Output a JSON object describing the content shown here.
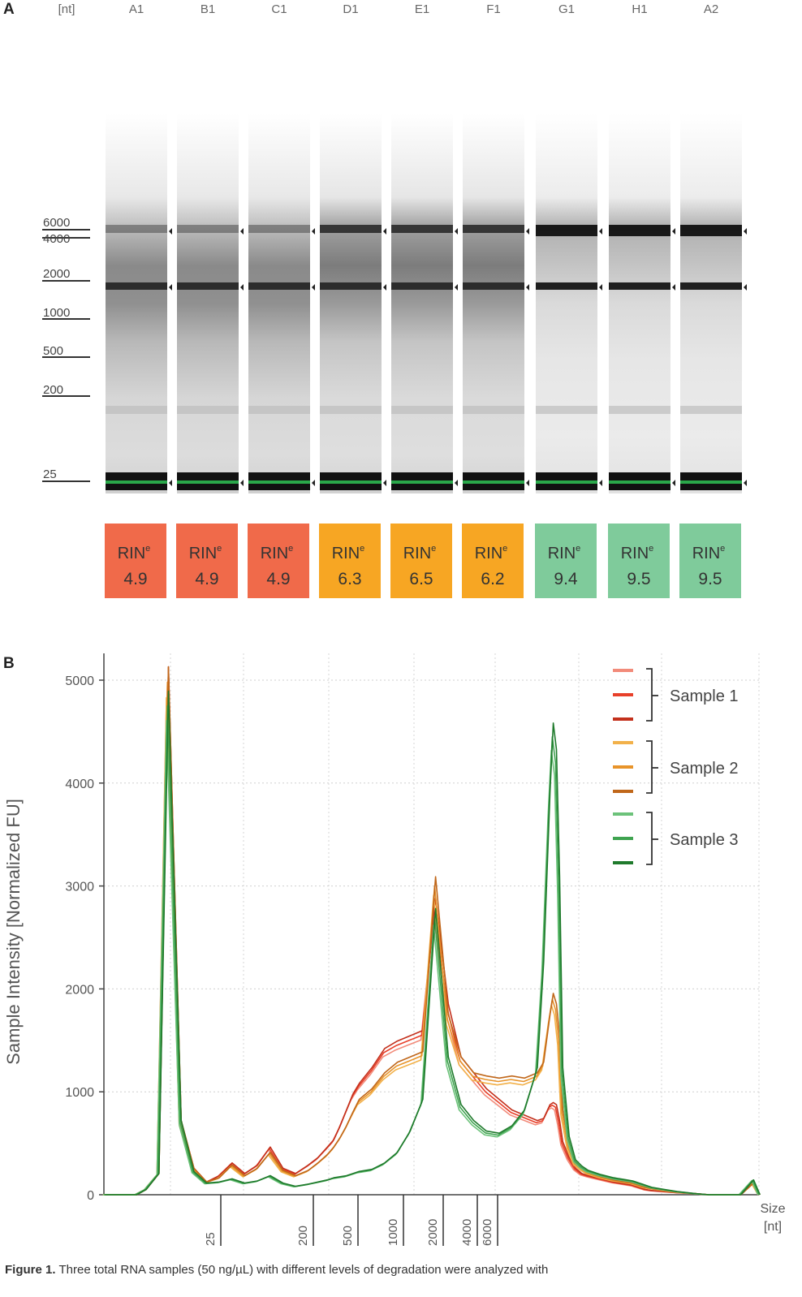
{
  "panel_a": {
    "label": "A",
    "unit_label": "[nt]",
    "ladder": [
      "6000",
      "4000",
      "2000",
      "1000",
      "500",
      "200",
      "25"
    ],
    "lanes": [
      {
        "id": "A1",
        "rin": "4.9",
        "group": "low"
      },
      {
        "id": "B1",
        "rin": "4.9",
        "group": "low"
      },
      {
        "id": "C1",
        "rin": "4.9",
        "group": "low"
      },
      {
        "id": "D1",
        "rin": "6.3",
        "group": "mid"
      },
      {
        "id": "E1",
        "rin": "6.5",
        "group": "mid"
      },
      {
        "id": "F1",
        "rin": "6.2",
        "group": "mid"
      },
      {
        "id": "G1",
        "rin": "9.4",
        "group": "high"
      },
      {
        "id": "H1",
        "rin": "9.5",
        "group": "high"
      },
      {
        "id": "A2",
        "rin": "9.5",
        "group": "high"
      }
    ],
    "rin_label": "RIN",
    "rin_sup": "e",
    "colors": {
      "low": "#f06a4a",
      "mid": "#f7a623",
      "high": "#7fcb9b"
    }
  },
  "panel_b": {
    "label": "B",
    "legend_groups": [
      "Sample 1",
      "Sample 2",
      "Sample 3"
    ],
    "x_unit_line1": "Size",
    "x_unit_line2": "[nt]"
  },
  "chart_data": {
    "type": "line",
    "title": "",
    "xlabel": "Size [nt]",
    "ylabel": "Sample Intensity [Normalized FU]",
    "ylim": [
      0,
      5200
    ],
    "yticks": [
      0,
      1000,
      2000,
      3000,
      4000,
      5000
    ],
    "xtick_labels": [
      "25",
      "200",
      "500",
      "1000",
      "2000",
      "4000",
      "6000"
    ],
    "x_positions": [
      0,
      10,
      13,
      17,
      20,
      24,
      28,
      32,
      36,
      40,
      44,
      48,
      52,
      56,
      60,
      64,
      67,
      70,
      72,
      74,
      76,
      78,
      80,
      84,
      88,
      92,
      96,
      100,
      104,
      108,
      112,
      116,
      120,
      124,
      128,
      132,
      136,
      138,
      140,
      141,
      142,
      143,
      144,
      146,
      148,
      150,
      152,
      156,
      160,
      164,
      166,
      167,
      168,
      169,
      170,
      172,
      176,
      180,
      186,
      190,
      196,
      200,
      204,
      206
    ],
    "series": [
      {
        "name": "Sample 1",
        "color": "#e8402a",
        "values": [
          0,
          0,
          50,
          200,
          4980,
          700,
          250,
          120,
          180,
          300,
          200,
          280,
          450,
          250,
          200,
          280,
          350,
          450,
          520,
          650,
          800,
          950,
          1050,
          1200,
          1380,
          1450,
          1500,
          1550,
          2800,
          1800,
          1300,
          1150,
          1000,
          900,
          800,
          750,
          700,
          720,
          850,
          870,
          850,
          700,
          500,
          350,
          250,
          200,
          180,
          150,
          120,
          100,
          90,
          80,
          70,
          60,
          50,
          40,
          30,
          20,
          10,
          0,
          0,
          0,
          120,
          0
        ]
      },
      {
        "name": "Sample 2",
        "color": "#e8942a",
        "values": [
          0,
          0,
          50,
          200,
          4980,
          700,
          250,
          120,
          160,
          280,
          180,
          250,
          400,
          230,
          180,
          230,
          300,
          380,
          450,
          540,
          650,
          780,
          900,
          1000,
          1150,
          1250,
          1300,
          1350,
          3000,
          1700,
          1300,
          1150,
          1120,
          1100,
          1120,
          1100,
          1150,
          1250,
          1700,
          1900,
          1800,
          1500,
          800,
          450,
          300,
          250,
          210,
          170,
          140,
          120,
          110,
          100,
          90,
          80,
          70,
          60,
          40,
          25,
          10,
          0,
          0,
          0,
          110,
          0
        ]
      },
      {
        "name": "Sample 3",
        "color": "#2d9a3a",
        "values": [
          0,
          0,
          50,
          200,
          4750,
          700,
          220,
          110,
          120,
          150,
          110,
          130,
          180,
          110,
          80,
          100,
          120,
          140,
          160,
          170,
          180,
          200,
          220,
          240,
          300,
          400,
          600,
          900,
          2700,
          1300,
          850,
          700,
          600,
          580,
          650,
          800,
          1200,
          2200,
          3800,
          4450,
          4200,
          3000,
          1200,
          550,
          330,
          270,
          230,
          190,
          160,
          140,
          130,
          120,
          110,
          100,
          90,
          70,
          50,
          30,
          10,
          0,
          0,
          0,
          140,
          0
        ]
      }
    ]
  },
  "caption": {
    "label": "Figure 1.",
    "text": "Three total RNA samples (50 ng/µL) with different levels of degradation were analyzed with"
  }
}
